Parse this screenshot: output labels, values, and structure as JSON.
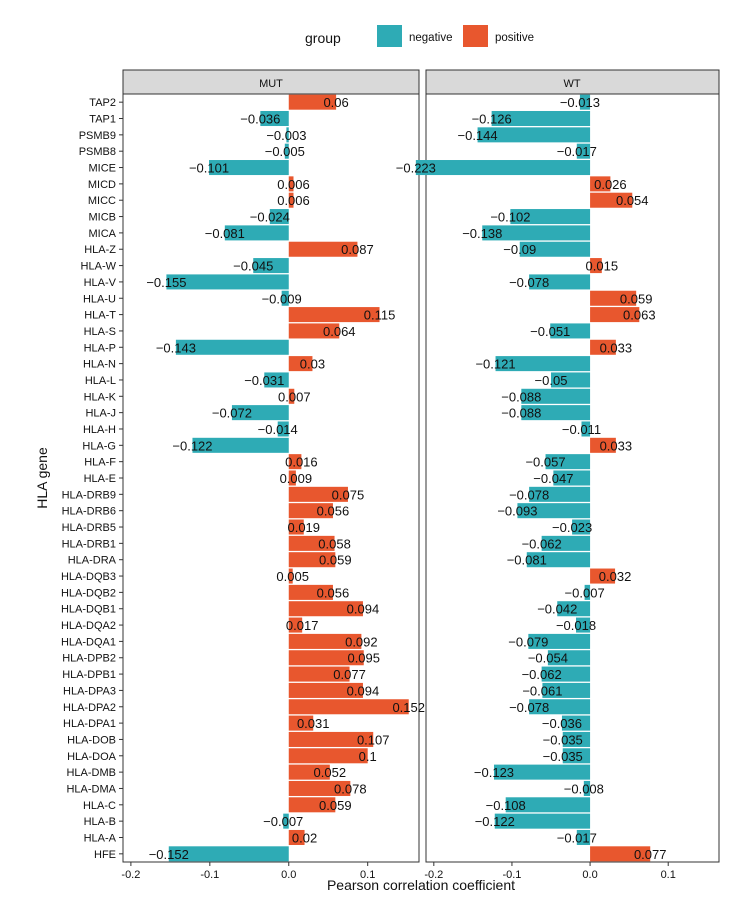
{
  "chart_data": {
    "type": "bar",
    "orientation": "horizontal",
    "xlabel": "Pearson correlation coefficient",
    "ylabel": "HLA gene",
    "xlim": [
      -0.21,
      0.165
    ],
    "xticks": [
      -0.2,
      -0.1,
      0.0,
      0.1
    ],
    "xtick_labels": [
      "-0.2",
      "-0.1",
      "0.0",
      "0.1"
    ],
    "legend": {
      "title": "group",
      "position": "top",
      "entries": [
        {
          "label": "negative",
          "color": "#2EABB5"
        },
        {
          "label": "positive",
          "color": "#E8572E"
        }
      ]
    },
    "categories": [
      "TAP2",
      "TAP1",
      "PSMB9",
      "PSMB8",
      "MICE",
      "MICD",
      "MICC",
      "MICB",
      "MICA",
      "HLA-Z",
      "HLA-W",
      "HLA-V",
      "HLA-U",
      "HLA-T",
      "HLA-S",
      "HLA-P",
      "HLA-N",
      "HLA-L",
      "HLA-K",
      "HLA-J",
      "HLA-H",
      "HLA-G",
      "HLA-F",
      "HLA-E",
      "HLA-DRB9",
      "HLA-DRB6",
      "HLA-DRB5",
      "HLA-DRB1",
      "HLA-DRA",
      "HLA-DQB3",
      "HLA-DQB2",
      "HLA-DQB1",
      "HLA-DQA2",
      "HLA-DQA1",
      "HLA-DPB2",
      "HLA-DPB1",
      "HLA-DPA3",
      "HLA-DPA2",
      "HLA-DPA1",
      "HLA-DOB",
      "HLA-DOA",
      "HLA-DMB",
      "HLA-DMA",
      "HLA-C",
      "HLA-B",
      "HLA-A",
      "HFE"
    ],
    "panels": [
      {
        "name": "MUT",
        "values": [
          0.06,
          -0.036,
          -0.003,
          -0.005,
          -0.101,
          0.006,
          0.006,
          -0.024,
          -0.081,
          0.087,
          -0.045,
          -0.155,
          -0.009,
          0.115,
          0.064,
          -0.143,
          0.03,
          -0.031,
          0.007,
          -0.072,
          -0.014,
          -0.122,
          0.016,
          0.009,
          0.075,
          0.056,
          0.019,
          0.058,
          0.059,
          0.005,
          0.056,
          0.094,
          0.017,
          0.092,
          0.095,
          0.077,
          0.094,
          0.152,
          0.031,
          0.107,
          0.1,
          0.052,
          0.078,
          0.059,
          -0.007,
          0.02,
          -0.152
        ],
        "labels": [
          "0.06",
          "−0.036",
          "−0.003",
          "−0.005",
          "−0.101",
          "0.006",
          "0.006",
          "−0.024",
          "−0.081",
          "0.087",
          "−0.045",
          "−0.155",
          "−0.009",
          "0.115",
          "0.064",
          "−0.143",
          "0.03",
          "−0.031",
          "0.007",
          "−0.072",
          "−0.014",
          "−0.122",
          "0.016",
          "0.009",
          "0.075",
          "0.056",
          "0.019",
          "0.058",
          "0.059",
          "0.005",
          "0.056",
          "0.094",
          "0.017",
          "0.092",
          "0.095",
          "0.077",
          "0.094",
          "0.152",
          "0.031",
          "0.107",
          "0.1",
          "0.052",
          "0.078",
          "0.059",
          "−0.007",
          "0.02",
          "−0.152"
        ]
      },
      {
        "name": "WT",
        "values": [
          -0.013,
          -0.126,
          -0.144,
          -0.017,
          -0.223,
          0.026,
          0.054,
          -0.102,
          -0.138,
          -0.09,
          0.015,
          -0.078,
          0.059,
          0.063,
          -0.051,
          0.033,
          -0.121,
          -0.05,
          -0.088,
          -0.088,
          -0.011,
          0.033,
          -0.057,
          -0.047,
          -0.078,
          -0.093,
          -0.023,
          -0.062,
          -0.081,
          0.032,
          -0.007,
          -0.042,
          -0.018,
          -0.079,
          -0.054,
          -0.062,
          -0.061,
          -0.078,
          -0.036,
          -0.035,
          -0.035,
          -0.123,
          -0.008,
          -0.108,
          -0.122,
          -0.017,
          0.077
        ],
        "labels": [
          "−0.013",
          "−0.126",
          "−0.144",
          "−0.017",
          "−0.223",
          "0.026",
          "0.054",
          "−0.102",
          "−0.138",
          "−0.09",
          "0.015",
          "−0.078",
          "0.059",
          "0.063",
          "−0.051",
          "0.033",
          "−0.121",
          "−0.05",
          "−0.088",
          "−0.088",
          "−0.011",
          "0.033",
          "−0.057",
          "−0.047",
          "−0.078",
          "−0.093",
          "−0.023",
          "−0.062",
          "−0.081",
          "0.032",
          "−0.007",
          "−0.042",
          "−0.018",
          "−0.079",
          "−0.054",
          "−0.062",
          "−0.061",
          "−0.078",
          "−0.036",
          "−0.035",
          "−0.035",
          "−0.123",
          "−0.008",
          "−0.108",
          "−0.122",
          "−0.017",
          "0.077"
        ]
      }
    ]
  }
}
